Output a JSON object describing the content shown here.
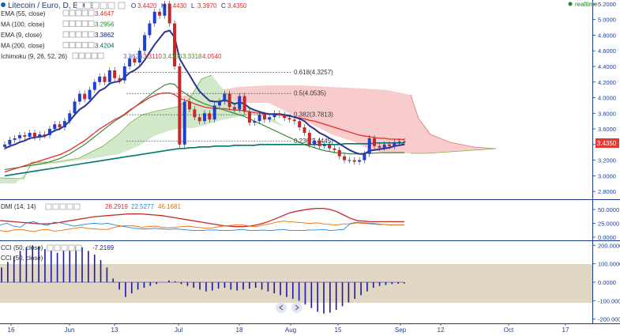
{
  "header": {
    "title": "Litecoin / Euro, D, BTCE",
    "ohlc": [
      {
        "k": "O",
        "v": "3.4420"
      },
      {
        "k": "H",
        "v": "3.4430"
      },
      {
        "k": "L",
        "v": "3.3970"
      },
      {
        "k": "C",
        "v": "3.4350"
      }
    ],
    "realtime": "realtime"
  },
  "indicators": [
    {
      "label": "EMA (55, close)",
      "value": "3.4647",
      "color": "#d32f2f"
    },
    {
      "label": "MA (100, close)",
      "value": "3.2956",
      "color": "#2e7d32"
    },
    {
      "label": "EMA (9, close)",
      "value": "3.3862",
      "color": "#1a237e"
    },
    {
      "label": "MA (200, close)",
      "value": "3.4204",
      "color": "#00695c"
    },
    {
      "label": "Ichimoku (9, 26, 52, 26)",
      "values": [
        "3.3626",
        "3.3110",
        "3.4350",
        "3.3318",
        "4.0540"
      ]
    }
  ],
  "fib": [
    {
      "label": "0.618(4.3257)",
      "price": 4.3257
    },
    {
      "label": "0.5(4.0535)",
      "price": 4.0535
    },
    {
      "label": "0.382(3.7813)",
      "price": 3.7813
    },
    {
      "label": "0.236(3.4445)",
      "price": 3.4445
    }
  ],
  "last_price": "3.4350",
  "price_axis": [
    "5.2000",
    "5.0000",
    "4.8000",
    "4.6000",
    "4.4000",
    "4.2000",
    "4.0000",
    "3.8000",
    "3.6000",
    "3.4000",
    "3.2000",
    "3.0000",
    "2.8000"
  ],
  "dmi": {
    "label": "DMI (14, 14)",
    "values": [
      "28.2919",
      "22.5277",
      "46.1681"
    ],
    "axis": [
      "50.0000",
      "25.0000",
      "0.0000"
    ]
  },
  "cci": {
    "labels": [
      "CCI (50, close)",
      "CCI (50, close)"
    ],
    "value": "-7.2169",
    "axis": [
      "200.0000",
      "100.0000",
      "0.0000",
      "-100.0000",
      "-200.0000"
    ]
  },
  "x_axis": [
    "16",
    "Jun",
    "13",
    "Jul",
    "18",
    "Aug",
    "15",
    "Sep",
    "12",
    "Oct",
    "17"
  ],
  "chart_data": {
    "type": "line",
    "title": "Litecoin / Euro, D, BTCE",
    "y_range": [
      2.7,
      5.25
    ],
    "candles_close": [
      3.4,
      3.46,
      3.48,
      3.52,
      3.5,
      3.55,
      3.49,
      3.53,
      3.52,
      3.6,
      3.66,
      3.62,
      3.7,
      3.8,
      3.95,
      4.05,
      3.98,
      4.1,
      4.2,
      4.27,
      4.2,
      4.35,
      4.25,
      4.22,
      4.4,
      4.5,
      4.45,
      4.6,
      4.8,
      4.95,
      5.1,
      5.05,
      5.2,
      4.95,
      4.4,
      3.4,
      3.95,
      3.85,
      3.75,
      3.7,
      3.8,
      3.72,
      3.9,
      3.95,
      4.05,
      3.88,
      3.85,
      4.02,
      3.82,
      3.68,
      3.7,
      3.78,
      3.72,
      3.75,
      3.8,
      3.78,
      3.74,
      3.72,
      3.7,
      3.62,
      3.55,
      3.4,
      3.45,
      3.38,
      3.4,
      3.35,
      3.33,
      3.25,
      3.2,
      3.2,
      3.18,
      3.2,
      3.28,
      3.48,
      3.38,
      3.36,
      3.4,
      3.38,
      3.43,
      3.44,
      3.435
    ],
    "ema9": [
      3.35,
      3.38,
      3.4,
      3.43,
      3.45,
      3.48,
      3.49,
      3.5,
      3.51,
      3.54,
      3.58,
      3.6,
      3.64,
      3.7,
      3.78,
      3.85,
      3.89,
      3.95,
      4.02,
      4.09,
      4.12,
      4.18,
      4.2,
      4.21,
      4.26,
      4.32,
      4.35,
      4.4,
      4.48,
      4.58,
      4.68,
      4.76,
      4.84,
      4.86,
      4.77,
      4.5,
      4.39,
      4.29,
      4.18,
      4.08,
      4.02,
      3.96,
      3.95,
      3.95,
      3.97,
      3.95,
      3.92,
      3.94,
      3.92,
      3.87,
      3.84,
      3.82,
      3.8,
      3.79,
      3.79,
      3.79,
      3.78,
      3.77,
      3.75,
      3.73,
      3.7,
      3.64,
      3.6,
      3.55,
      3.52,
      3.48,
      3.45,
      3.41,
      3.37,
      3.33,
      3.3,
      3.28,
      3.28,
      3.32,
      3.33,
      3.34,
      3.35,
      3.36,
      3.38,
      3.39,
      3.4
    ],
    "ema55": [
      3.05,
      3.07,
      3.09,
      3.11,
      3.13,
      3.15,
      3.17,
      3.19,
      3.21,
      3.23,
      3.25,
      3.27,
      3.3,
      3.33,
      3.37,
      3.41,
      3.45,
      3.5,
      3.55,
      3.6,
      3.64,
      3.68,
      3.72,
      3.75,
      3.79,
      3.84,
      3.88,
      3.92,
      3.96,
      4.0,
      4.03,
      4.05,
      4.06,
      4.06,
      4.04,
      3.99,
      3.97,
      3.95,
      3.92,
      3.9,
      3.88,
      3.87,
      3.86,
      3.86,
      3.86,
      3.85,
      3.84,
      3.84,
      3.83,
      3.82,
      3.81,
      3.8,
      3.79,
      3.79,
      3.78,
      3.78,
      3.77,
      3.76,
      3.75,
      3.74,
      3.73,
      3.71,
      3.7,
      3.68,
      3.66,
      3.64,
      3.62,
      3.6,
      3.58,
      3.56,
      3.54,
      3.52,
      3.51,
      3.5,
      3.49,
      3.48,
      3.48,
      3.47,
      3.47,
      3.466,
      3.4647
    ],
    "ma100": [
      3.08,
      3.09,
      3.1,
      3.11,
      3.12,
      3.13,
      3.14,
      3.15,
      3.16,
      3.18,
      3.2,
      3.22,
      3.25,
      3.28,
      3.32,
      3.36,
      3.4,
      3.45,
      3.5,
      3.55,
      3.6,
      3.65,
      3.7,
      3.74,
      3.78,
      3.83,
      3.88,
      3.93,
      3.98,
      4.03,
      4.08,
      4.12,
      4.16,
      4.18,
      4.17,
      4.1,
      4.06,
      4.02,
      3.98,
      3.95,
      3.92,
      3.9,
      3.88,
      3.86,
      3.84,
      3.82,
      3.8,
      3.78,
      3.76,
      3.73,
      3.7,
      3.67,
      3.64,
      3.61,
      3.58,
      3.55,
      3.52,
      3.49,
      3.46,
      3.43,
      3.4,
      3.38,
      3.36,
      3.34,
      3.32,
      3.31,
      3.3,
      3.29,
      3.29,
      3.28,
      3.28,
      3.28,
      3.29,
      3.29,
      3.29,
      3.295,
      3.295,
      3.295,
      3.296,
      3.296,
      3.2956
    ],
    "ma200": [
      3.0,
      3.01,
      3.02,
      3.03,
      3.04,
      3.05,
      3.06,
      3.07,
      3.08,
      3.09,
      3.1,
      3.11,
      3.12,
      3.13,
      3.14,
      3.15,
      3.16,
      3.17,
      3.18,
      3.19,
      3.2,
      3.21,
      3.22,
      3.23,
      3.24,
      3.25,
      3.26,
      3.27,
      3.28,
      3.29,
      3.3,
      3.31,
      3.32,
      3.33,
      3.34,
      3.35,
      3.35,
      3.36,
      3.36,
      3.37,
      3.37,
      3.37,
      3.38,
      3.38,
      3.38,
      3.38,
      3.39,
      3.39,
      3.39,
      3.39,
      3.39,
      3.4,
      3.4,
      3.4,
      3.4,
      3.4,
      3.4,
      3.4,
      3.4,
      3.4,
      3.4,
      3.4,
      3.4,
      3.4,
      3.4,
      3.4,
      3.4,
      3.4,
      3.41,
      3.41,
      3.41,
      3.41,
      3.41,
      3.41,
      3.42,
      3.42,
      3.42,
      3.42,
      3.42,
      3.42,
      3.4204
    ]
  }
}
